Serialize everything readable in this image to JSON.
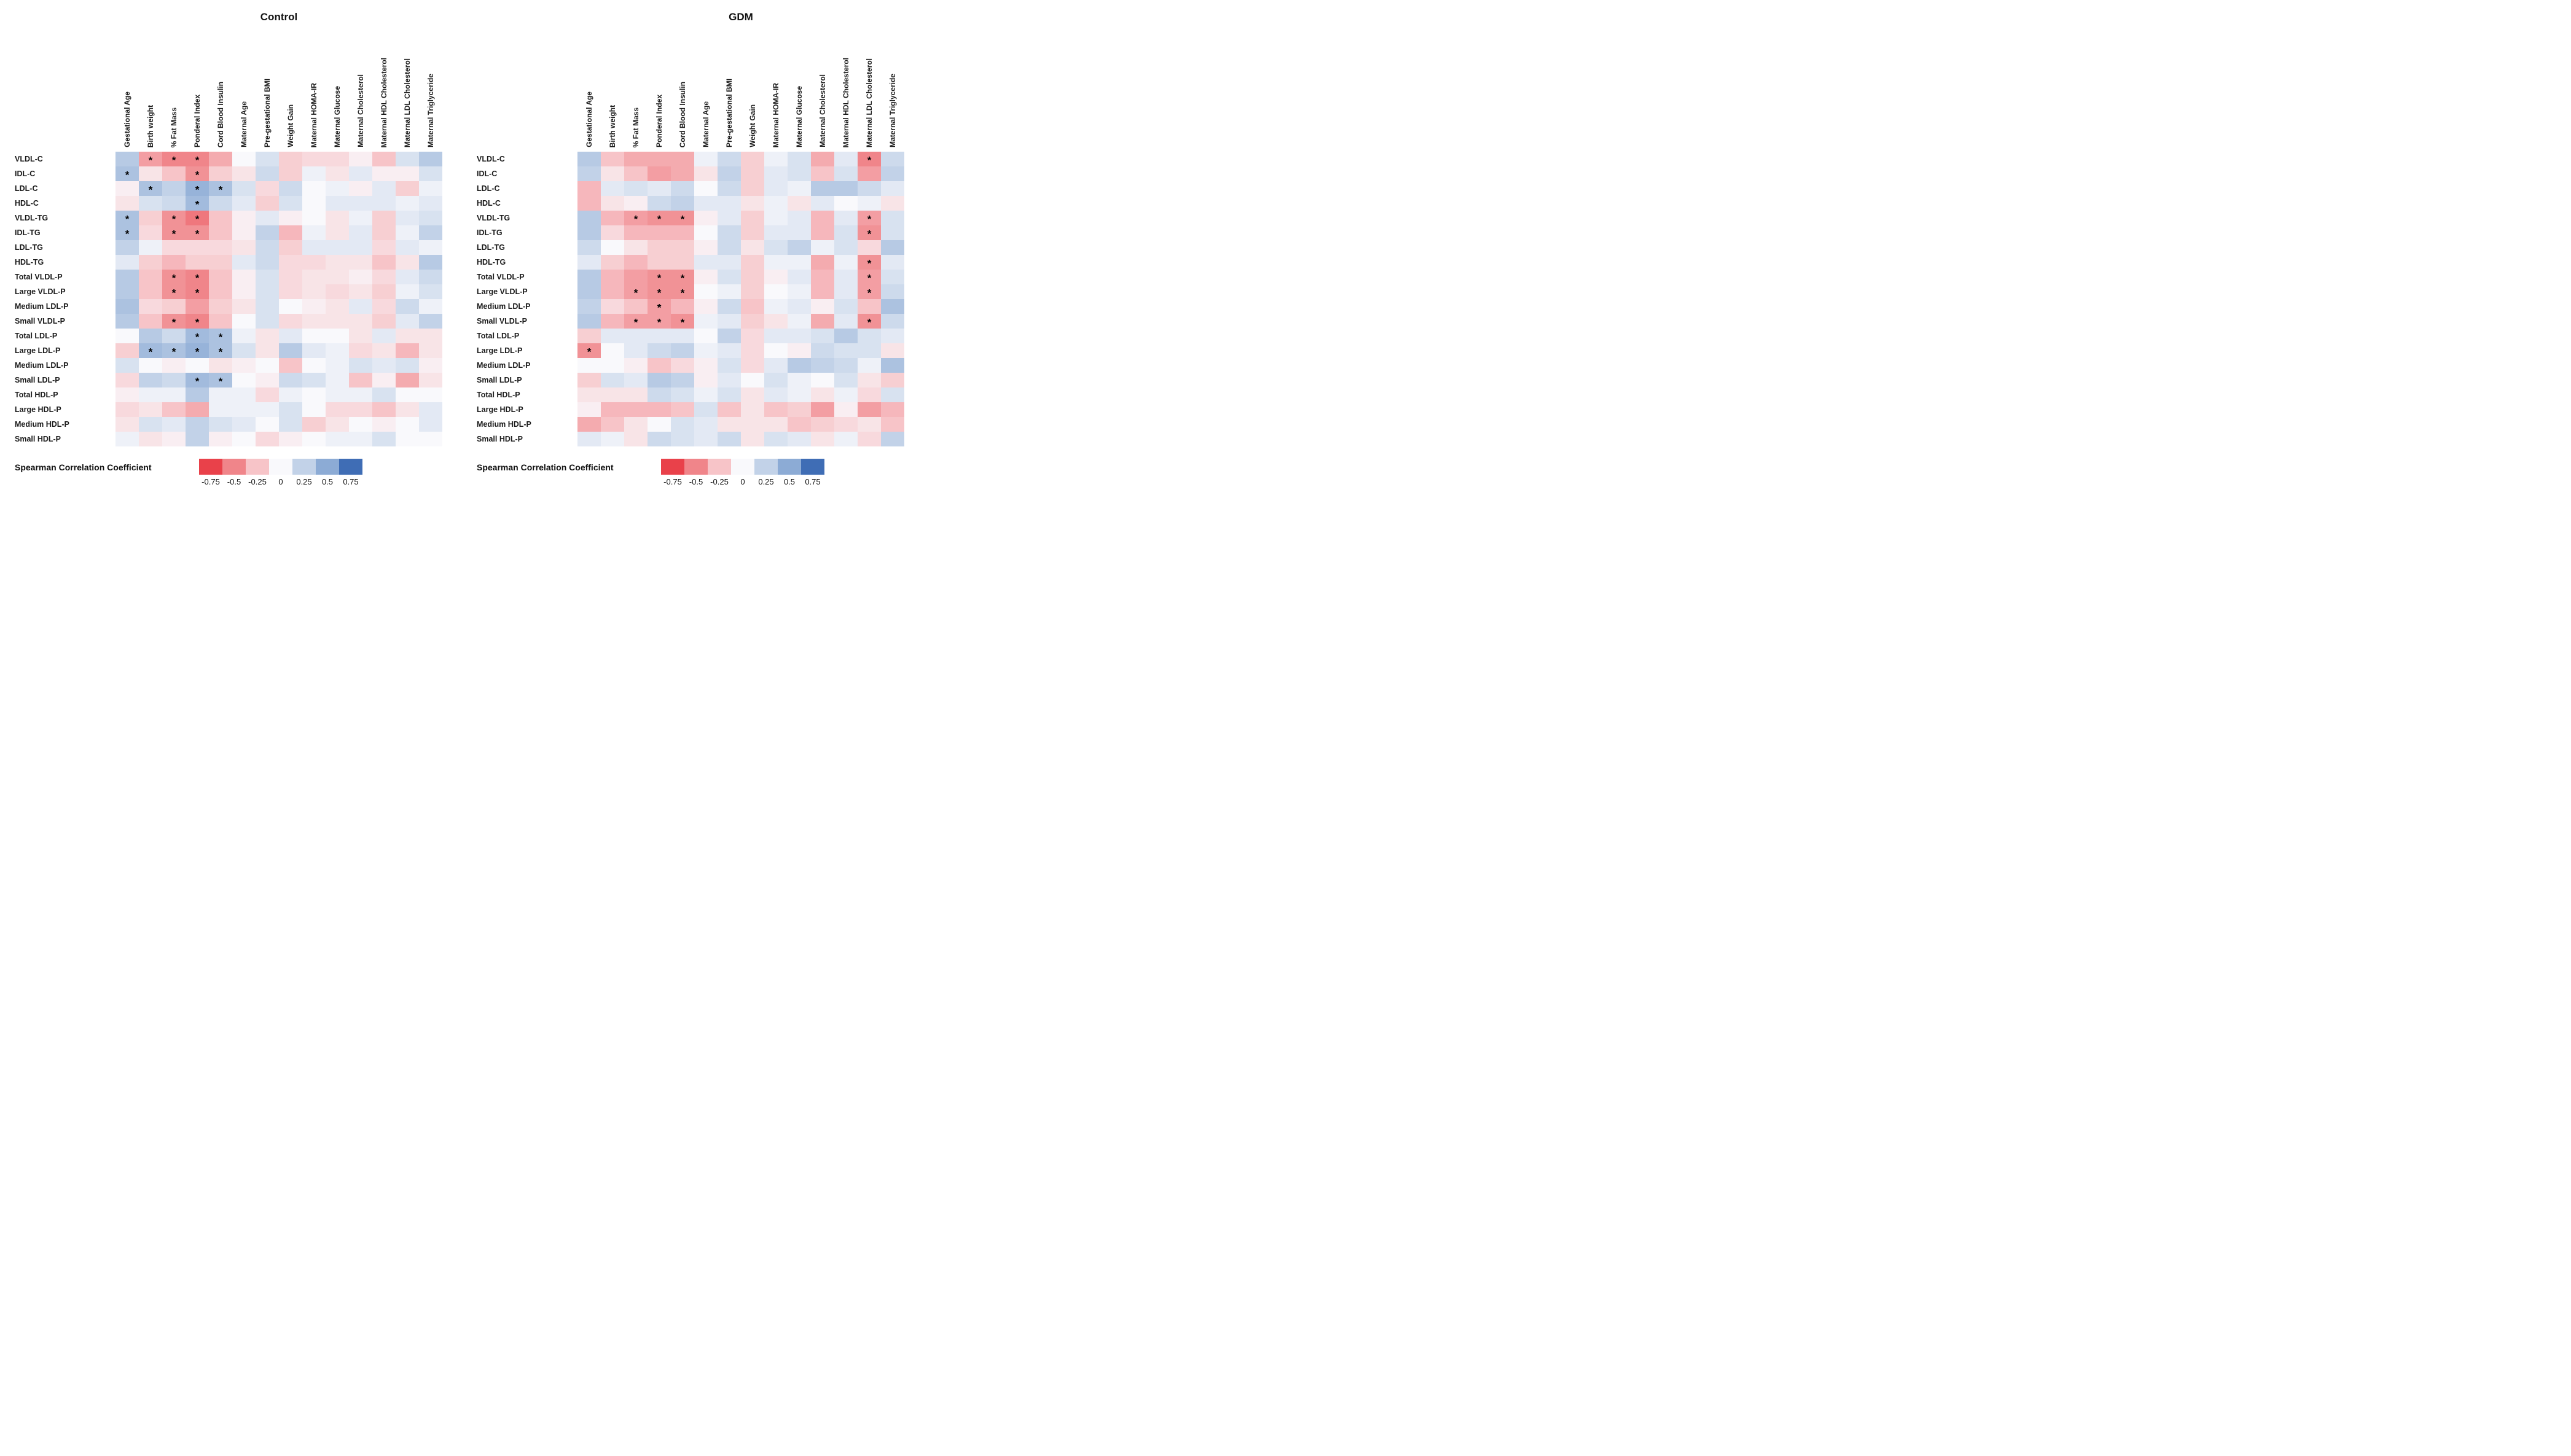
{
  "chart_data": [
    {
      "type": "heatmap",
      "title": "Control",
      "columns": [
        "Gestational Age",
        "Birth weight",
        "% Fat Mass",
        "Ponderal Index",
        "Cord Blood Insulin",
        "Maternal Age",
        "Pre-gestational BMI",
        "Weight Gain",
        "Maternal HOMA-IR",
        "Maternal Glucose",
        "Maternal Cholesterol",
        "Maternal HDL Cholesterol",
        "Maternal LDL Cholesterol",
        "Maternal Triglyceride"
      ],
      "rows": [
        "VLDL-C",
        "IDL-C",
        "LDL-C",
        "HDL-C",
        "VLDL-TG",
        "IDL-TG",
        "LDL-TG",
        "HDL-TG",
        "Total VLDL-P",
        "Large VLDL-P",
        "Medium LDL-P",
        "Small VLDL-P",
        "Total LDL-P",
        "Large LDL-P",
        "Medium LDL-P",
        "Small LDL-P",
        "Total HDL-P",
        "Large HDL-P",
        "Medium HDL-P",
        "Small HDL-P"
      ],
      "values": [
        [
          0.3,
          -0.4,
          -0.5,
          -0.5,
          -0.35,
          0,
          0.15,
          -0.2,
          -0.15,
          -0.15,
          -0.05,
          -0.25,
          0.15,
          0.3
        ],
        [
          0.35,
          -0.1,
          -0.25,
          -0.45,
          -0.2,
          -0.1,
          0.2,
          -0.2,
          0.05,
          -0.1,
          0.1,
          -0.05,
          -0.05,
          0.15
        ],
        [
          -0.05,
          0.35,
          0.25,
          0.45,
          0.35,
          0.15,
          -0.15,
          0.2,
          0,
          0.05,
          -0.05,
          0.1,
          -0.2,
          0.05
        ],
        [
          -0.1,
          0.15,
          0.2,
          0.4,
          0.2,
          0.1,
          -0.2,
          0.15,
          0,
          0.1,
          0.1,
          0.1,
          0.05,
          0.1
        ],
        [
          0.35,
          -0.2,
          -0.45,
          -0.55,
          -0.25,
          -0.05,
          0.1,
          -0.05,
          0,
          -0.1,
          0.05,
          -0.2,
          0.1,
          0.15
        ],
        [
          0.35,
          -0.15,
          -0.45,
          -0.45,
          -0.25,
          -0.05,
          0.25,
          -0.3,
          0.05,
          -0.1,
          0.1,
          -0.2,
          0.05,
          0.25
        ],
        [
          0.25,
          0.05,
          -0.15,
          -0.15,
          -0.15,
          -0.1,
          0.2,
          -0.2,
          0.1,
          0.1,
          0.1,
          -0.15,
          0.1,
          0.05
        ],
        [
          0.1,
          -0.2,
          -0.3,
          -0.2,
          -0.2,
          0.1,
          0.2,
          -0.15,
          -0.15,
          -0.1,
          -0.1,
          -0.25,
          -0.1,
          0.3
        ],
        [
          0.3,
          -0.25,
          -0.45,
          -0.5,
          -0.25,
          -0.05,
          0.15,
          -0.15,
          -0.1,
          -0.1,
          -0.05,
          -0.15,
          0.1,
          0.2
        ],
        [
          0.3,
          -0.25,
          -0.45,
          -0.5,
          -0.25,
          -0.05,
          0.15,
          -0.15,
          -0.1,
          -0.15,
          -0.1,
          -0.2,
          0.05,
          0.15
        ],
        [
          0.35,
          -0.15,
          -0.2,
          -0.4,
          -0.2,
          -0.1,
          0.15,
          0,
          -0.05,
          -0.1,
          0.1,
          -0.15,
          0.2,
          0.05
        ],
        [
          0.3,
          -0.25,
          -0.45,
          -0.5,
          -0.25,
          0,
          0.15,
          -0.15,
          -0.1,
          -0.1,
          -0.1,
          -0.2,
          0.1,
          0.25
        ],
        [
          0,
          0.3,
          0.2,
          0.4,
          0.35,
          0.05,
          -0.1,
          0.1,
          0,
          0,
          -0.1,
          0.1,
          -0.1,
          -0.1
        ],
        [
          -0.2,
          0.4,
          0.35,
          0.45,
          0.35,
          0.15,
          -0.1,
          0.3,
          0.1,
          0.05,
          -0.15,
          -0.1,
          -0.3,
          -0.1
        ],
        [
          0.15,
          0,
          -0.05,
          0,
          -0.1,
          -0.05,
          0,
          -0.25,
          0,
          0.05,
          0.15,
          0.1,
          0.15,
          -0.05
        ],
        [
          -0.15,
          0.25,
          0.2,
          0.4,
          0.35,
          0,
          -0.05,
          0.2,
          0.15,
          0.05,
          -0.25,
          -0.05,
          -0.35,
          -0.1
        ],
        [
          -0.05,
          0.05,
          0.05,
          0.3,
          0.05,
          0.05,
          -0.15,
          0.05,
          0,
          0.05,
          0.05,
          0.15,
          0,
          0
        ],
        [
          -0.15,
          -0.1,
          -0.25,
          -0.35,
          0.05,
          0.05,
          0.05,
          0.15,
          0,
          -0.15,
          -0.15,
          -0.25,
          -0.1,
          0.1
        ],
        [
          -0.1,
          0.15,
          0.1,
          0.25,
          0.15,
          0.1,
          0,
          0.15,
          -0.2,
          -0.1,
          0,
          -0.05,
          0,
          0.1
        ],
        [
          0.05,
          -0.1,
          -0.05,
          0.25,
          -0.05,
          0,
          -0.15,
          -0.05,
          0,
          0.05,
          0.05,
          0.15,
          0,
          0
        ]
      ],
      "significant": [
        [
          1,
          2,
          3
        ],
        [
          0,
          3
        ],
        [
          1,
          3,
          4
        ],
        [
          3
        ],
        [
          0,
          2,
          3
        ],
        [
          0,
          2,
          3
        ],
        [],
        [],
        [
          2,
          3
        ],
        [
          2,
          3
        ],
        [],
        [
          2,
          3
        ],
        [
          3,
          4
        ],
        [
          1,
          2,
          3,
          4
        ],
        [],
        [
          3,
          4
        ],
        [],
        [],
        [],
        []
      ],
      "legend": {
        "label": "Spearman Correlation Coefficient",
        "ticks": [
          "-0.75",
          "-0.5",
          "-0.25",
          "0",
          "0.25",
          "0.5",
          "0.75"
        ]
      },
      "colorscale": {
        "anchors": [
          -0.75,
          -0.5,
          -0.25,
          0,
          0.25,
          0.5,
          0.75
        ],
        "colors": [
          "#e9414a",
          "#f0858a",
          "#f7c4c8",
          "#f9f9fc",
          "#c2d2e8",
          "#8cabd5",
          "#3f6db5"
        ]
      }
    },
    {
      "type": "heatmap",
      "title": "GDM",
      "columns": [
        "Gestational Age",
        "Birth weight",
        "% Fat Mass",
        "Ponderal Index",
        "Cord Blood Insulin",
        "Maternal Age",
        "Pre-gestational BMI",
        "Weight Gain",
        "Maternal HOMA-IR",
        "Maternal Glucose",
        "Maternal Cholesterol",
        "Maternal HDL Cholesterol",
        "Maternal LDL Cholesterol",
        "Maternal Triglyceride"
      ],
      "rows": [
        "VLDL-C",
        "IDL-C",
        "LDL-C",
        "HDL-C",
        "VLDL-TG",
        "IDL-TG",
        "LDL-TG",
        "HDL-TG",
        "Total VLDL-P",
        "Large VLDL-P",
        "Medium LDL-P",
        "Small VLDL-P",
        "Total LDL-P",
        "Large LDL-P",
        "Medium LDL-P",
        "Small LDL-P",
        "Total HDL-P",
        "Large HDL-P",
        "Medium HDL-P",
        "Small HDL-P"
      ],
      "values": [
        [
          0.3,
          -0.25,
          -0.35,
          -0.35,
          -0.35,
          0.05,
          0.2,
          -0.2,
          0.05,
          0.15,
          -0.35,
          0.1,
          -0.5,
          0.2
        ],
        [
          0.25,
          -0.1,
          -0.25,
          -0.4,
          -0.35,
          -0.1,
          0.25,
          -0.2,
          0.1,
          0.15,
          -0.25,
          0.15,
          -0.4,
          0.25
        ],
        [
          -0.3,
          0.1,
          0.15,
          0.1,
          0.2,
          0,
          0.2,
          -0.2,
          0.1,
          0.05,
          0.3,
          0.3,
          0.2,
          0.1
        ],
        [
          -0.3,
          -0.1,
          -0.05,
          0.2,
          0.25,
          0.1,
          0.1,
          -0.1,
          0.05,
          -0.1,
          0.1,
          0,
          0.05,
          -0.1
        ],
        [
          0.3,
          -0.3,
          -0.4,
          -0.45,
          -0.45,
          -0.05,
          0.1,
          -0.2,
          0.05,
          0.1,
          -0.3,
          0.1,
          -0.4,
          0.15
        ],
        [
          0.3,
          -0.15,
          -0.3,
          -0.3,
          -0.3,
          0,
          0.2,
          -0.2,
          0.1,
          0.1,
          -0.3,
          0.15,
          -0.45,
          0.15
        ],
        [
          0.2,
          0,
          -0.1,
          -0.2,
          -0.2,
          -0.05,
          0.2,
          -0.1,
          0.15,
          0.25,
          0.05,
          0.15,
          -0.15,
          0.3
        ],
        [
          0.1,
          -0.2,
          -0.3,
          -0.2,
          -0.2,
          0.1,
          0.1,
          -0.2,
          0.05,
          0.05,
          -0.35,
          0.05,
          -0.45,
          0.1
        ],
        [
          0.3,
          -0.3,
          -0.4,
          -0.45,
          -0.45,
          -0.05,
          0.15,
          -0.2,
          -0.05,
          0.1,
          -0.3,
          0.1,
          -0.4,
          0.15
        ],
        [
          0.3,
          -0.3,
          -0.4,
          -0.45,
          -0.45,
          0,
          0.05,
          -0.2,
          0,
          0.05,
          -0.3,
          0.1,
          -0.4,
          0.2
        ],
        [
          0.25,
          -0.15,
          -0.25,
          -0.4,
          -0.3,
          -0.05,
          0.2,
          -0.25,
          0.05,
          0.1,
          -0.05,
          0.15,
          -0.25,
          0.35
        ],
        [
          0.3,
          -0.3,
          -0.4,
          -0.4,
          -0.45,
          0.05,
          0.1,
          -0.2,
          -0.1,
          0.05,
          -0.35,
          0.1,
          -0.45,
          0.2
        ],
        [
          -0.2,
          0.1,
          0.1,
          0.1,
          0.1,
          0,
          0.25,
          -0.15,
          0.1,
          0.1,
          0.15,
          0.3,
          0.15,
          0.1
        ],
        [
          -0.45,
          0,
          0.1,
          0.2,
          0.25,
          0.05,
          0.1,
          -0.15,
          0,
          -0.05,
          0.2,
          0.15,
          0.15,
          -0.1
        ],
        [
          0,
          0,
          -0.05,
          -0.25,
          -0.15,
          -0.05,
          0.15,
          -0.15,
          0.1,
          0.3,
          0.25,
          0.2,
          0.05,
          0.35
        ],
        [
          -0.2,
          0.15,
          0.1,
          0.3,
          0.25,
          -0.05,
          0.1,
          0,
          0.15,
          0.05,
          0,
          0.15,
          -0.1,
          -0.2
        ],
        [
          -0.1,
          -0.1,
          -0.1,
          0.2,
          0.15,
          0.05,
          0.15,
          -0.1,
          0.1,
          0.05,
          -0.1,
          0.05,
          -0.15,
          0.15
        ],
        [
          -0.05,
          -0.3,
          -0.3,
          -0.3,
          -0.25,
          0.15,
          -0.25,
          -0.1,
          -0.25,
          -0.2,
          -0.4,
          -0.05,
          -0.4,
          -0.3
        ],
        [
          -0.35,
          -0.25,
          -0.1,
          0,
          0.15,
          0.1,
          -0.1,
          -0.1,
          -0.1,
          -0.25,
          -0.2,
          -0.15,
          -0.1,
          -0.25
        ],
        [
          0.1,
          0.05,
          -0.1,
          0.2,
          0.15,
          0.1,
          0.2,
          -0.1,
          0.15,
          0.1,
          -0.1,
          0.05,
          -0.15,
          0.25
        ]
      ],
      "significant": [
        [
          12
        ],
        [],
        [],
        [],
        [
          2,
          3,
          4,
          12
        ],
        [
          12
        ],
        [],
        [
          12
        ],
        [
          3,
          4,
          12
        ],
        [
          2,
          3,
          4,
          12
        ],
        [
          3
        ],
        [
          2,
          3,
          4,
          12
        ],
        [],
        [
          0
        ],
        [],
        [],
        [],
        [],
        [],
        []
      ],
      "legend": {
        "label": "Spearman Correlation Coefficient",
        "ticks": [
          "-0.75",
          "-0.5",
          "-0.25",
          "0",
          "0.25",
          "0.5",
          "0.75"
        ]
      },
      "colorscale": {
        "anchors": [
          -0.75,
          -0.5,
          -0.25,
          0,
          0.25,
          0.5,
          0.75
        ],
        "colors": [
          "#e9414a",
          "#f0858a",
          "#f7c4c8",
          "#f9f9fc",
          "#c2d2e8",
          "#8cabd5",
          "#3f6db5"
        ]
      }
    }
  ]
}
